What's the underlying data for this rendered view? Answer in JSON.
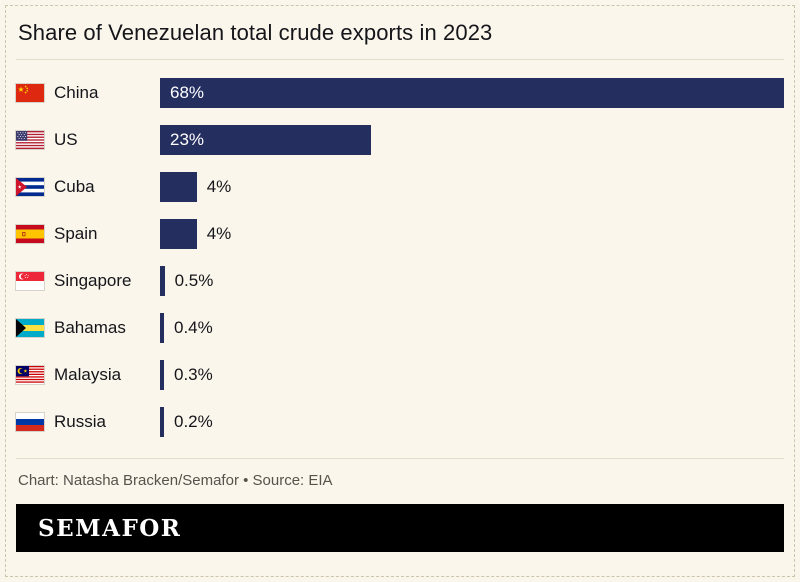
{
  "title": "Share of Venezuelan total crude exports in 2023",
  "footer": {
    "credit": "Chart: Natasha Bracken/Semafor • Source: EIA",
    "brand": "SEMAFOR"
  },
  "colors": {
    "background": "#faf6ec",
    "bar": "#242e5f",
    "title_text": "#15151a",
    "credit_text": "#55534b",
    "brand_bg": "#000000",
    "brand_text": "#ffffff"
  },
  "chart_data": {
    "type": "bar",
    "orientation": "horizontal",
    "title": "Share of Venezuelan total crude exports in 2023",
    "categories": [
      "China",
      "US",
      "Cuba",
      "Spain",
      "Singapore",
      "Bahamas",
      "Malaysia",
      "Russia"
    ],
    "values": [
      68,
      23,
      4,
      4,
      0.5,
      0.4,
      0.3,
      0.2
    ],
    "value_labels": [
      "68%",
      "23%",
      "4%",
      "4%",
      "0.5%",
      "0.4%",
      "0.3%",
      "0.2%"
    ],
    "flags": [
      "china-flag-icon",
      "us-flag-icon",
      "cuba-flag-icon",
      "spain-flag-icon",
      "singapore-flag-icon",
      "bahamas-flag-icon",
      "malaysia-flag-icon",
      "russia-flag-icon"
    ],
    "xlim": [
      0,
      68
    ],
    "xlabel": "",
    "ylabel": "",
    "grid": false,
    "legend": false,
    "inside_label_threshold": 10
  }
}
